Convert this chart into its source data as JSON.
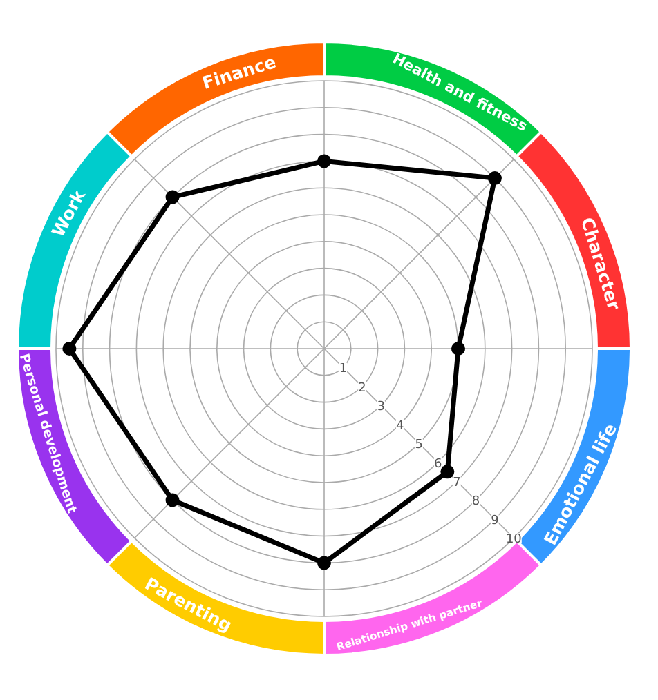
{
  "chart_data": {
    "type": "radar",
    "categories": [
      "Finance",
      "Health and fitness",
      "Character",
      "Emotional life",
      "Relationship with partner",
      "Parenting",
      "Personal development",
      "Work"
    ],
    "colors": [
      "#ff6600",
      "#00cc44",
      "#ff3333",
      "#3399ff",
      "#ff66ee",
      "#ffcc00",
      "#9933ee",
      "#00cccc"
    ],
    "series": [
      {
        "color": "#000000",
        "values": [
          7,
          9,
          5,
          6.5,
          8,
          8,
          9.5,
          8
        ]
      }
    ],
    "ylim": [
      0,
      10
    ],
    "yticks": [
      1,
      2,
      3,
      4,
      5,
      6,
      7,
      8,
      9,
      10
    ],
    "grid": true,
    "marker": "circle",
    "line_style": "solid"
  }
}
